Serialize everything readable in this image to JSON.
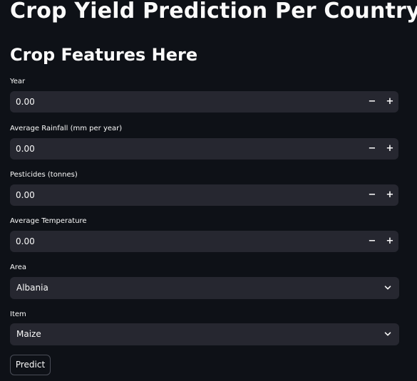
{
  "header": {
    "title": "Crop Yield Prediction Per Country",
    "subtitle": "Crop Features Here"
  },
  "fields": {
    "year": {
      "label": "Year",
      "value": "0.00"
    },
    "rainfall": {
      "label": "Average Rainfall (mm per year)",
      "value": "0.00"
    },
    "pesticides": {
      "label": "Pesticides (tonnes)",
      "value": "0.00"
    },
    "temperature": {
      "label": "Average Temperature",
      "value": "0.00"
    },
    "area": {
      "label": "Area",
      "value": "Albania"
    },
    "item": {
      "label": "Item",
      "value": "Maize"
    }
  },
  "stepper": {
    "minus": "−",
    "plus": "+"
  },
  "actions": {
    "predict_label": "Predict"
  },
  "icons": {
    "dropdown": "chevron-down-icon"
  }
}
